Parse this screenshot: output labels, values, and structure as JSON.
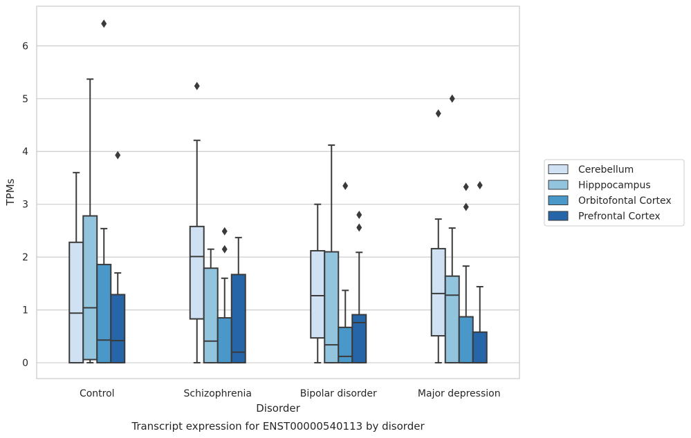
{
  "chart_data": {
    "type": "box",
    "title": "Transcript expression for ENST00000540113 by disorder",
    "xlabel": "Disorder",
    "ylabel": "TPMs",
    "ylim": [
      -0.3,
      6.75
    ],
    "yticks": [
      0,
      1,
      2,
      3,
      4,
      5,
      6
    ],
    "grid": true,
    "legend_position": "right",
    "categories": [
      "Control",
      "Schizophrenia",
      "Bipolar disorder",
      "Major depression"
    ],
    "series": [
      {
        "name": "Cerebellum",
        "color": "#cfe1f2",
        "boxes": [
          {
            "whislo": 0.0,
            "q1": 0.0,
            "med": 0.94,
            "q3": 2.28,
            "whishi": 3.6,
            "fliers": []
          },
          {
            "whislo": 0.0,
            "q1": 0.83,
            "med": 2.01,
            "q3": 2.58,
            "whishi": 4.21,
            "fliers": [
              5.24
            ]
          },
          {
            "whislo": 0.0,
            "q1": 0.47,
            "med": 1.27,
            "q3": 2.12,
            "whishi": 3.0,
            "fliers": []
          },
          {
            "whislo": 0.0,
            "q1": 0.51,
            "med": 1.31,
            "q3": 2.16,
            "whishi": 2.72,
            "fliers": [
              4.72
            ]
          }
        ]
      },
      {
        "name": "Hipppocampus",
        "color": "#93c4de",
        "boxes": [
          {
            "whislo": 0.0,
            "q1": 0.06,
            "med": 1.04,
            "q3": 2.78,
            "whishi": 5.37,
            "fliers": []
          },
          {
            "whislo": 0.0,
            "q1": 0.0,
            "med": 0.41,
            "q3": 1.79,
            "whishi": 2.15,
            "fliers": []
          },
          {
            "whislo": 0.0,
            "q1": 0.0,
            "med": 0.34,
            "q3": 2.1,
            "whishi": 4.12,
            "fliers": []
          },
          {
            "whislo": 0.0,
            "q1": 0.0,
            "med": 1.28,
            "q3": 1.64,
            "whishi": 2.55,
            "fliers": [
              5.0
            ]
          }
        ]
      },
      {
        "name": "Orbitofontal Cortex",
        "color": "#4a98c9",
        "boxes": [
          {
            "whislo": 0.0,
            "q1": 0.0,
            "med": 0.43,
            "q3": 1.86,
            "whishi": 2.54,
            "fliers": [
              6.42
            ]
          },
          {
            "whislo": 0.0,
            "q1": 0.0,
            "med": 0.0,
            "q3": 0.85,
            "whishi": 1.6,
            "fliers": [
              2.15,
              2.49
            ]
          },
          {
            "whislo": 0.0,
            "q1": 0.0,
            "med": 0.12,
            "q3": 0.67,
            "whishi": 1.37,
            "fliers": [
              3.35
            ]
          },
          {
            "whislo": 0.0,
            "q1": 0.0,
            "med": 0.0,
            "q3": 0.87,
            "whishi": 1.83,
            "fliers": [
              2.95,
              3.33
            ]
          }
        ]
      },
      {
        "name": "Prefrontal Cortex",
        "color": "#2565a8",
        "boxes": [
          {
            "whislo": 0.0,
            "q1": 0.0,
            "med": 0.42,
            "q3": 1.29,
            "whishi": 1.7,
            "fliers": [
              3.93
            ]
          },
          {
            "whislo": 0.0,
            "q1": 0.0,
            "med": 0.2,
            "q3": 1.67,
            "whishi": 2.37,
            "fliers": []
          },
          {
            "whislo": 0.0,
            "q1": 0.0,
            "med": 0.76,
            "q3": 0.91,
            "whishi": 2.09,
            "fliers": [
              2.56,
              2.8
            ]
          },
          {
            "whislo": 0.0,
            "q1": 0.0,
            "med": 0.0,
            "q3": 0.58,
            "whishi": 1.44,
            "fliers": [
              3.36
            ]
          }
        ]
      }
    ]
  }
}
